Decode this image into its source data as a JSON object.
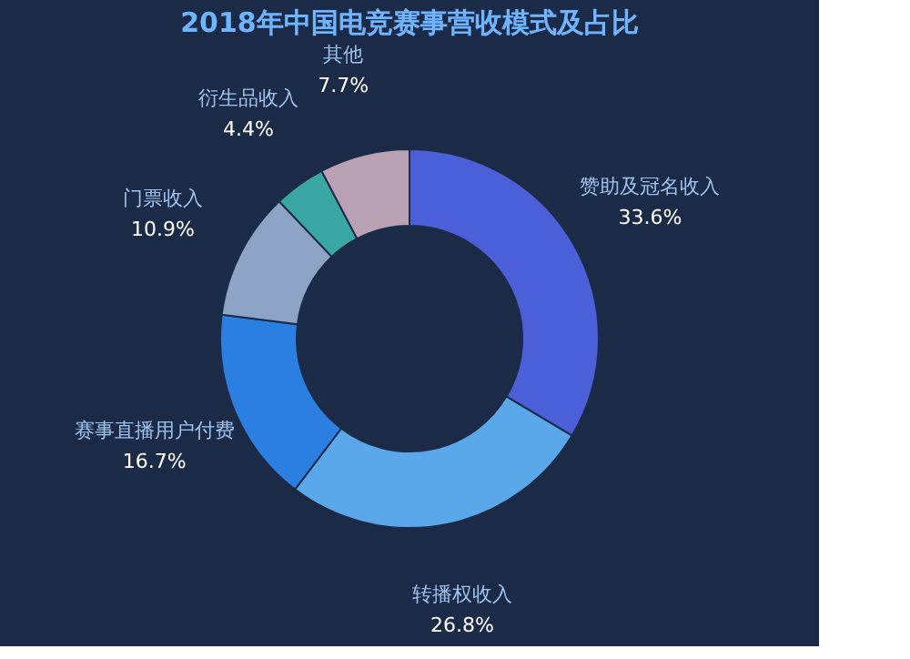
{
  "chart_data": {
    "type": "donut",
    "title": "2018年中国电竞赛事营收模式及占比",
    "categories": [
      "赞助及冠名收入",
      "转播权收入",
      "赛事直播用户付费",
      "门票收入",
      "衍生品收入",
      "其他"
    ],
    "values": [
      33.6,
      26.8,
      16.7,
      10.9,
      4.4,
      7.7
    ],
    "value_labels": [
      "33.6%",
      "26.8%",
      "16.7%",
      "10.9%",
      "4.4%",
      "7.7%"
    ],
    "colors": [
      "#4b5fd8",
      "#5aa8ea",
      "#2b7fe0",
      "#8ea4c6",
      "#3aa7a3",
      "#b9a2b4"
    ],
    "legend": false
  }
}
